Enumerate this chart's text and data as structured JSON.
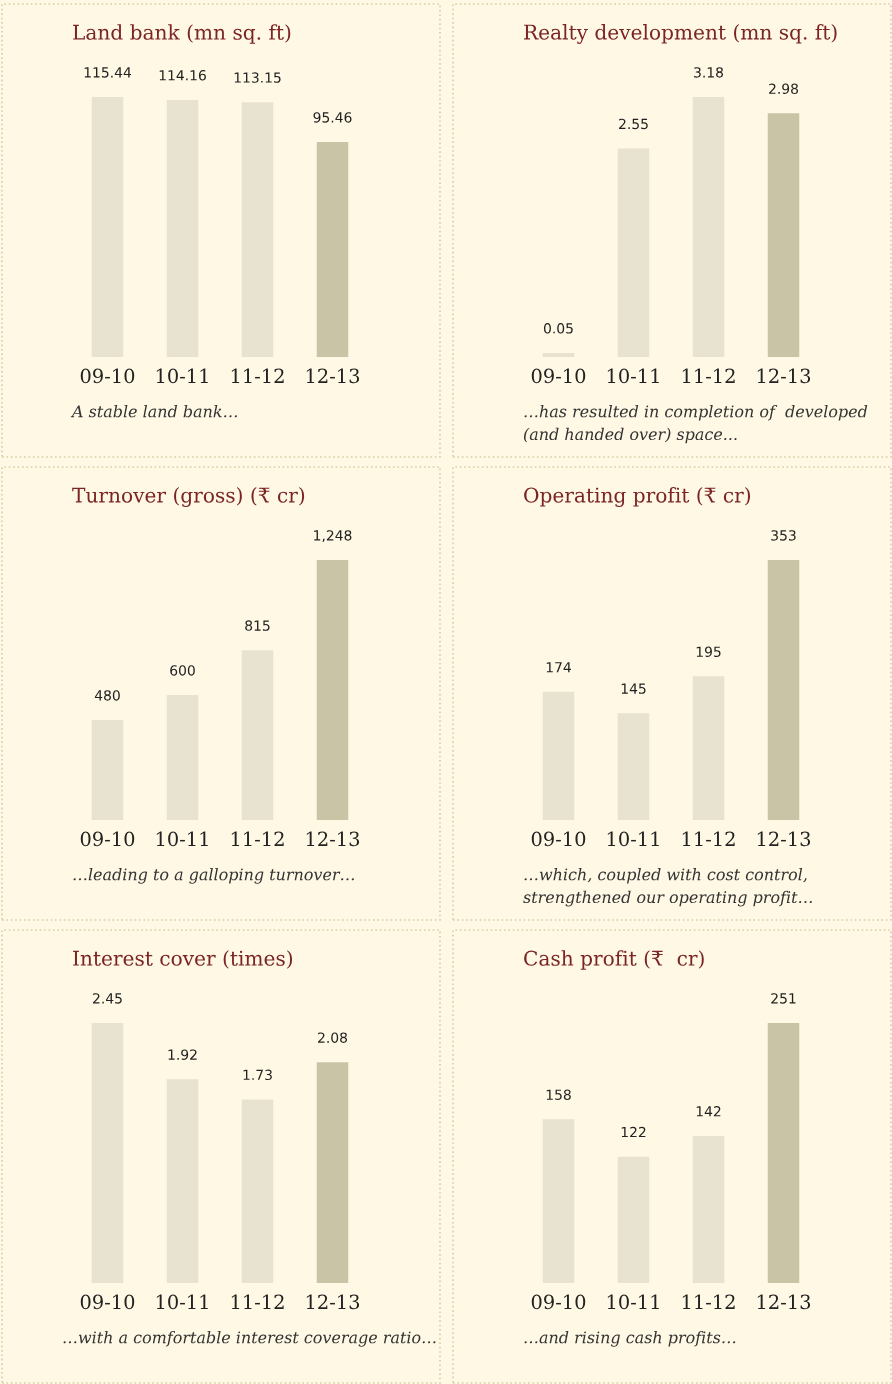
{
  "chart_data": [
    {
      "type": "bar",
      "title": "Land bank (mn sq. ft)",
      "categories": [
        "09-10",
        "10-11",
        "11-12",
        "12-13"
      ],
      "values": [
        115.44,
        114.16,
        113.15,
        95.46
      ],
      "value_labels": [
        "115.44",
        "114.16",
        "113.15",
        "95.46"
      ],
      "colors": [
        "#e8e2d0",
        "#e8e2d0",
        "#e8e2d0",
        "#c9c4a6"
      ],
      "annotations": [
        "A stable land bank…"
      ]
    },
    {
      "type": "bar",
      "title": "Realty development (mn sq. ft)",
      "categories": [
        "09-10",
        "10-11",
        "11-12",
        "12-13"
      ],
      "values": [
        0.05,
        2.55,
        3.18,
        2.98
      ],
      "value_labels": [
        "0.05",
        "2.55",
        "3.18",
        "2.98"
      ],
      "colors": [
        "#e8e2d0",
        "#e8e2d0",
        "#e8e2d0",
        "#c9c4a6"
      ],
      "annotations": [
        "…has resulted in completion of  developed\n(and handed over) space..."
      ]
    },
    {
      "type": "bar",
      "title": "Turnover (gross) (₹ cr)",
      "categories": [
        "09-10",
        "10-11",
        "11-12",
        "12-13"
      ],
      "values": [
        480,
        600,
        815,
        1248
      ],
      "value_labels": [
        "480",
        "600",
        "815",
        "1,248"
      ],
      "colors": [
        "#e8e2d0",
        "#e8e2d0",
        "#e8e2d0",
        "#c9c4a6"
      ],
      "annotations": [
        "…leading to a galloping turnover…"
      ]
    },
    {
      "type": "bar",
      "title": "Operating profit (₹ cr)",
      "categories": [
        "09-10",
        "10-11",
        "11-12",
        "12-13"
      ],
      "values": [
        174,
        145,
        195,
        353
      ],
      "value_labels": [
        "174",
        "145",
        "195",
        "353"
      ],
      "colors": [
        "#e8e2d0",
        "#e8e2d0",
        "#e8e2d0",
        "#c9c4a6"
      ],
      "annotations": [
        "…which, coupled with cost control,\nstrengthened our operating profit…"
      ]
    },
    {
      "type": "bar",
      "title": "Interest cover (times)",
      "categories": [
        "09-10",
        "10-11",
        "11-12",
        "12-13"
      ],
      "values": [
        2.45,
        1.92,
        1.73,
        2.08
      ],
      "value_labels": [
        "2.45",
        "1.92",
        "1.73",
        "2.08"
      ],
      "colors": [
        "#e8e2d0",
        "#e8e2d0",
        "#e8e2d0",
        "#c9c4a6"
      ],
      "annotations": [
        "…with a comfortable interest coverage ratio…"
      ]
    },
    {
      "type": "bar",
      "title": "Cash profit (₹  cr)",
      "categories": [
        "09-10",
        "10-11",
        "11-12",
        "12-13"
      ],
      "values": [
        158,
        122,
        142,
        251
      ],
      "value_labels": [
        "158",
        "122",
        "142",
        "251"
      ],
      "colors": [
        "#e8e2d0",
        "#e8e2d0",
        "#e8e2d0",
        "#c9c4a6"
      ],
      "annotations": [
        "…and rising cash profits…"
      ]
    }
  ]
}
